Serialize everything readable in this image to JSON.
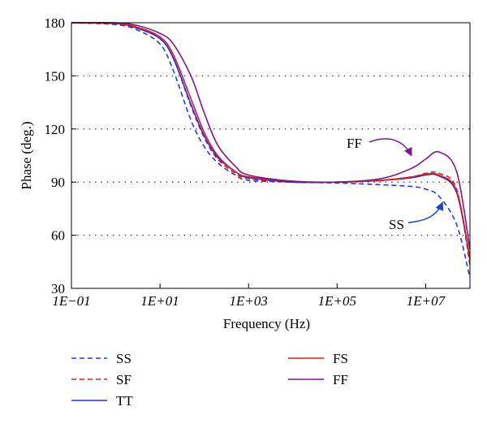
{
  "chart_data": {
    "type": "line",
    "title": "",
    "xlabel": "Frequency (Hz)",
    "ylabel": "Phase (deg.)",
    "x_scale": "log",
    "xlim": [
      0.1,
      100000000
    ],
    "ylim": [
      30,
      180
    ],
    "x_ticks": [
      {
        "value": 0.1,
        "label": "1E−01"
      },
      {
        "value": 10,
        "label": "1E+01"
      },
      {
        "value": 1000,
        "label": "1E+03"
      },
      {
        "value": 100000,
        "label": "1E+05"
      },
      {
        "value": 10000000,
        "label": "1E+07"
      }
    ],
    "y_ticks": [
      {
        "value": 30,
        "label": "30"
      },
      {
        "value": 60,
        "label": "60"
      },
      {
        "value": 90,
        "label": "90"
      },
      {
        "value": 120,
        "label": "120"
      },
      {
        "value": 150,
        "label": "150"
      },
      {
        "value": 180,
        "label": "180"
      }
    ],
    "grid": "horizontal dotted",
    "legend_position": "bottom",
    "series": [
      {
        "name": "SS",
        "color": "#1f3fd9",
        "dash": "dashed",
        "x": [
          0.1,
          1,
          3,
          10,
          20,
          50,
          100,
          200,
          500,
          1000,
          10000,
          100000,
          1000000,
          5000000,
          10000000,
          20000000,
          50000000,
          100000000
        ],
        "y": [
          180,
          179,
          176,
          168,
          153,
          125,
          110,
          101,
          94,
          91,
          90,
          89.5,
          88.5,
          87.5,
          86,
          82,
          66,
          36
        ]
      },
      {
        "name": "SF",
        "color": "#e0201a",
        "dash": "dashed",
        "x": [
          0.1,
          1,
          3,
          10,
          20,
          50,
          100,
          200,
          500,
          1000,
          10000,
          100000,
          1000000,
          5000000,
          10000000,
          20000000,
          50000000,
          100000000
        ],
        "y": [
          180,
          179.5,
          177,
          171,
          160,
          133,
          115,
          103,
          95,
          92,
          90,
          90,
          91,
          93,
          95,
          95,
          86,
          43
        ]
      },
      {
        "name": "TT",
        "color": "#1f2fe0",
        "dash": "solid",
        "x": [
          0.1,
          1,
          3,
          10,
          20,
          50,
          100,
          200,
          500,
          1000,
          10000,
          100000,
          1000000,
          5000000,
          10000000,
          20000000,
          50000000,
          100000000
        ],
        "y": [
          180,
          179.5,
          177,
          171,
          160,
          134,
          116,
          104,
          96,
          92.5,
          90,
          90,
          91,
          92.5,
          94,
          93.5,
          84,
          46
        ]
      },
      {
        "name": "FS",
        "color": "#e41a1a",
        "dash": "solid",
        "x": [
          0.1,
          1,
          3,
          10,
          20,
          50,
          100,
          200,
          500,
          1000,
          10000,
          100000,
          1000000,
          5000000,
          10000000,
          20000000,
          50000000,
          100000000
        ],
        "y": [
          180,
          179.5,
          177.5,
          172,
          162,
          137,
          118,
          105,
          96,
          93,
          90.5,
          90,
          91,
          93,
          94.5,
          94,
          85,
          47
        ]
      },
      {
        "name": "FF",
        "color": "#7b1a8a",
        "dash": "solid",
        "x": [
          0.1,
          1,
          3,
          10,
          20,
          50,
          100,
          200,
          500,
          1000,
          10000,
          100000,
          1000000,
          5000000,
          10000000,
          20000000,
          50000000,
          100000000
        ],
        "y": [
          180,
          180,
          178.5,
          174,
          168,
          150,
          129,
          111,
          99,
          94,
          90.5,
          90,
          92,
          98,
          103,
          107,
          96,
          52
        ]
      }
    ],
    "annotations": [
      {
        "text": "FF",
        "color": "#7b1a8a",
        "points_to_x": 5000000,
        "points_to_y": 104
      },
      {
        "text": "SS",
        "color": "#1f3fd9",
        "points_to_x": 25000000,
        "points_to_y": 79
      }
    ]
  }
}
